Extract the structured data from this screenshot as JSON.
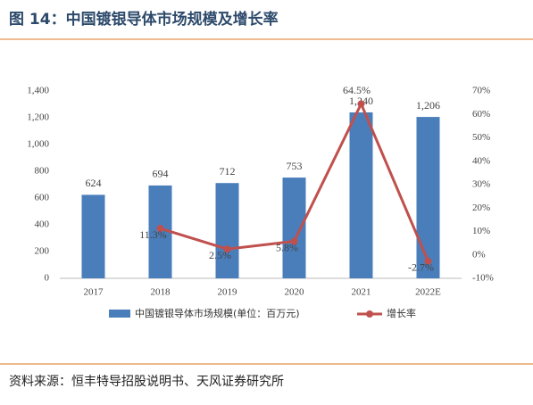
{
  "chart_data": {
    "type": "bar_line",
    "title": "图 14：中国镀银导体市场规模及增长率",
    "categories": [
      "2017",
      "2018",
      "2019",
      "2020",
      "2021",
      "2022E"
    ],
    "series": [
      {
        "name": "中国镀银导体市场规模(单位：百万元)",
        "type": "bar",
        "color": "#4a7ebb",
        "values": [
          624,
          694,
          712,
          753,
          1240,
          1206
        ],
        "value_labels": [
          "624",
          "694",
          "712",
          "753",
          "1,240",
          "1,206"
        ]
      },
      {
        "name": "增长率",
        "type": "line",
        "axis": "y2",
        "color": "#c0504d",
        "values": [
          null,
          11.3,
          2.5,
          5.8,
          64.5,
          -2.7
        ],
        "value_labels": [
          null,
          "11.3%",
          "2.5%",
          "5.8%",
          "64.5%",
          "-2.7%"
        ]
      }
    ],
    "ylim": [
      0,
      1400
    ],
    "yticks": [
      0,
      200,
      400,
      600,
      800,
      {
        "value": 1000,
        "label": "1,000"
      },
      {
        "value": 1200,
        "label": "1,200"
      },
      {
        "value": 1400,
        "label": "1,400"
      }
    ],
    "y2lim": [
      -10,
      70
    ],
    "y2ticks": [
      {
        "value": -10,
        "label": "-10%"
      },
      {
        "value": 0,
        "label": "0%"
      },
      {
        "value": 10,
        "label": "10%"
      },
      {
        "value": 20,
        "label": "20%"
      },
      {
        "value": 30,
        "label": "30%"
      },
      {
        "value": 40,
        "label": "40%"
      },
      {
        "value": 50,
        "label": "50%"
      },
      {
        "value": 60,
        "label": "60%"
      },
      {
        "value": 70,
        "label": "70%"
      }
    ],
    "source": "资料来源：恒丰特导招股说明书、天风证券研究所"
  }
}
